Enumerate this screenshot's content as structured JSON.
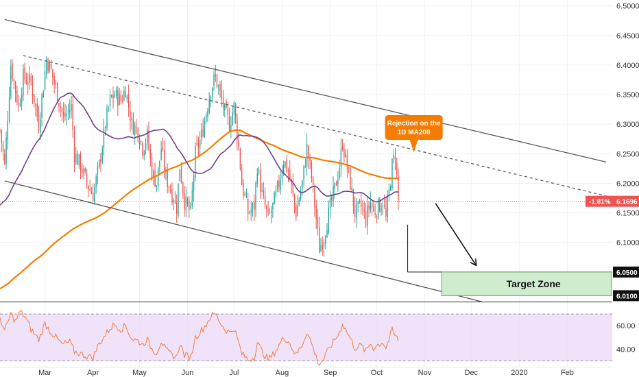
{
  "chart_data": {
    "type": "candlestick",
    "colors": {
      "up": "#26a69a",
      "down": "#ef5350",
      "ma200": "#f57c00",
      "ma50": "#6a3d8f",
      "rsi": "#f07a3c",
      "rsi_band": "#e9d7f7",
      "target_fill": "#cfeccf",
      "target_border": "#5fa35f",
      "callout": "#f57c00",
      "last_price_tag": "#ef5350",
      "level_tag": "#111111",
      "channel": "#555555"
    },
    "y_ticks": [
      "6.5000",
      "6.4500",
      "6.4000",
      "6.3500",
      "6.3000",
      "6.2500",
      "6.2000",
      "6.1500",
      "6.1000"
    ],
    "y_tick_values": [
      6.5,
      6.45,
      6.4,
      6.35,
      6.3,
      6.25,
      6.2,
      6.15,
      6.1
    ],
    "x_ticks": [
      "Mar",
      "Apr",
      "May",
      "Jun",
      "Jul",
      "Aug",
      "Sep",
      "Oct",
      "Nov",
      "Dec",
      "2020",
      "Feb"
    ],
    "x_tick_days": [
      44,
      75,
      105,
      136,
      166,
      197,
      228,
      258,
      289,
      319,
      350,
      381
    ],
    "ylim": [
      6.0,
      6.51
    ],
    "xlim": [
      15,
      410
    ],
    "rsi_ticks": [
      "60.00",
      "40.00"
    ],
    "rsi_tick_values": [
      60,
      40
    ],
    "rsi_band": [
      30,
      70
    ],
    "rsi_ylim": [
      25,
      80
    ],
    "last_price": 6.1696,
    "last_price_label": "6.1696",
    "change_label": "-1.81%",
    "levels": [
      {
        "price": 6.05,
        "label": "6.0500"
      },
      {
        "price": 6.01,
        "label": "6.0100"
      }
    ],
    "target_zone": {
      "label": "Target Zone",
      "top": 6.05,
      "bottom": 6.01,
      "start_day": 300,
      "end_day": 410
    },
    "annotation": {
      "line1": "Rejection on the",
      "line2": "1D MA200",
      "day": 282,
      "price": 6.248
    },
    "channel": {
      "upper": {
        "start": [
          18,
          6.477
        ],
        "end": [
          406,
          6.236
        ]
      },
      "lower": {
        "start": [
          18,
          6.204
        ],
        "end": [
          327,
          5.999
        ]
      },
      "middle": {
        "start": [
          30,
          6.416
        ],
        "end": [
          407,
          6.178
        ]
      }
    },
    "projection_arrow": {
      "start": [
        296,
        6.166
      ],
      "end": [
        322,
        6.062
      ]
    },
    "support_line": {
      "start": [
        278,
        6.05
      ],
      "end": [
        410,
        6.05
      ]
    },
    "close_anchors": [
      [
        15,
        6.29
      ],
      [
        18,
        6.23
      ],
      [
        22,
        6.4
      ],
      [
        27,
        6.33
      ],
      [
        30,
        6.38
      ],
      [
        35,
        6.37
      ],
      [
        40,
        6.3
      ],
      [
        45,
        6.41
      ],
      [
        48,
        6.39
      ],
      [
        52,
        6.35
      ],
      [
        56,
        6.31
      ],
      [
        61,
        6.33
      ],
      [
        63,
        6.25
      ],
      [
        67,
        6.23
      ],
      [
        71,
        6.2
      ],
      [
        75,
        6.18
      ],
      [
        79,
        6.23
      ],
      [
        83,
        6.3
      ],
      [
        86,
        6.34
      ],
      [
        89,
        6.35
      ],
      [
        93,
        6.34
      ],
      [
        96,
        6.36
      ],
      [
        100,
        6.3
      ],
      [
        104,
        6.29
      ],
      [
        107,
        6.26
      ],
      [
        110,
        6.28
      ],
      [
        113,
        6.22
      ],
      [
        116,
        6.2
      ],
      [
        119,
        6.26
      ],
      [
        122,
        6.21
      ],
      [
        125,
        6.19
      ],
      [
        129,
        6.16
      ],
      [
        131,
        6.23
      ],
      [
        134,
        6.17
      ],
      [
        138,
        6.15
      ],
      [
        141,
        6.25
      ],
      [
        145,
        6.28
      ],
      [
        148,
        6.32
      ],
      [
        151,
        6.36
      ],
      [
        154,
        6.38
      ],
      [
        157,
        6.35
      ],
      [
        160,
        6.32
      ],
      [
        163,
        6.3
      ],
      [
        166,
        6.33
      ],
      [
        169,
        6.26
      ],
      [
        171,
        6.2
      ],
      [
        175,
        6.15
      ],
      [
        179,
        6.16
      ],
      [
        181,
        6.23
      ],
      [
        184,
        6.18
      ],
      [
        188,
        6.14
      ],
      [
        191,
        6.16
      ],
      [
        195,
        6.2
      ],
      [
        198,
        6.24
      ],
      [
        201,
        6.22
      ],
      [
        206,
        6.15
      ],
      [
        210,
        6.2
      ],
      [
        213,
        6.26
      ],
      [
        216,
        6.21
      ],
      [
        219,
        6.14
      ],
      [
        221,
        6.09
      ],
      [
        224,
        6.11
      ],
      [
        228,
        6.16
      ],
      [
        231,
        6.19
      ],
      [
        234,
        6.23
      ],
      [
        236,
        6.27
      ],
      [
        238,
        6.24
      ],
      [
        241,
        6.2
      ],
      [
        244,
        6.15
      ],
      [
        248,
        6.16
      ],
      [
        251,
        6.14
      ],
      [
        254,
        6.17
      ],
      [
        256,
        6.15
      ],
      [
        259,
        6.16
      ],
      [
        262,
        6.17
      ],
      [
        264,
        6.14
      ],
      [
        268,
        6.23
      ],
      [
        270,
        6.25
      ],
      [
        272,
        6.17
      ]
    ],
    "rsi_anchors": [
      [
        15,
        67
      ],
      [
        18,
        55
      ],
      [
        22,
        70
      ],
      [
        25,
        64
      ],
      [
        28,
        72
      ],
      [
        31,
        68
      ],
      [
        35,
        57
      ],
      [
        40,
        48
      ],
      [
        44,
        62
      ],
      [
        47,
        56
      ],
      [
        51,
        50
      ],
      [
        55,
        44
      ],
      [
        60,
        46
      ],
      [
        63,
        38
      ],
      [
        67,
        36
      ],
      [
        71,
        34
      ],
      [
        75,
        33
      ],
      [
        79,
        45
      ],
      [
        83,
        52
      ],
      [
        86,
        58
      ],
      [
        89,
        61
      ],
      [
        93,
        57
      ],
      [
        96,
        60
      ],
      [
        100,
        49
      ],
      [
        104,
        47
      ],
      [
        107,
        44
      ],
      [
        110,
        48
      ],
      [
        113,
        40
      ],
      [
        116,
        37
      ],
      [
        119,
        47
      ],
      [
        122,
        39
      ],
      [
        125,
        36
      ],
      [
        129,
        33
      ],
      [
        131,
        45
      ],
      [
        134,
        35
      ],
      [
        138,
        33
      ],
      [
        141,
        50
      ],
      [
        145,
        56
      ],
      [
        148,
        61
      ],
      [
        151,
        68
      ],
      [
        154,
        70
      ],
      [
        157,
        63
      ],
      [
        160,
        57
      ],
      [
        163,
        54
      ],
      [
        166,
        58
      ],
      [
        169,
        45
      ],
      [
        171,
        36
      ],
      [
        175,
        31
      ],
      [
        179,
        33
      ],
      [
        181,
        46
      ],
      [
        184,
        38
      ],
      [
        188,
        31
      ],
      [
        191,
        35
      ],
      [
        195,
        43
      ],
      [
        198,
        50
      ],
      [
        201,
        47
      ],
      [
        206,
        35
      ],
      [
        210,
        44
      ],
      [
        213,
        55
      ],
      [
        216,
        45
      ],
      [
        219,
        33
      ],
      [
        221,
        27
      ],
      [
        224,
        32
      ],
      [
        228,
        42
      ],
      [
        231,
        48
      ],
      [
        234,
        54
      ],
      [
        236,
        62
      ],
      [
        238,
        57
      ],
      [
        241,
        49
      ],
      [
        244,
        41
      ],
      [
        248,
        43
      ],
      [
        251,
        38
      ],
      [
        254,
        45
      ],
      [
        256,
        41
      ],
      [
        259,
        44
      ],
      [
        262,
        46
      ],
      [
        264,
        41
      ],
      [
        268,
        56
      ],
      [
        270,
        51
      ],
      [
        272,
        48
      ]
    ]
  }
}
